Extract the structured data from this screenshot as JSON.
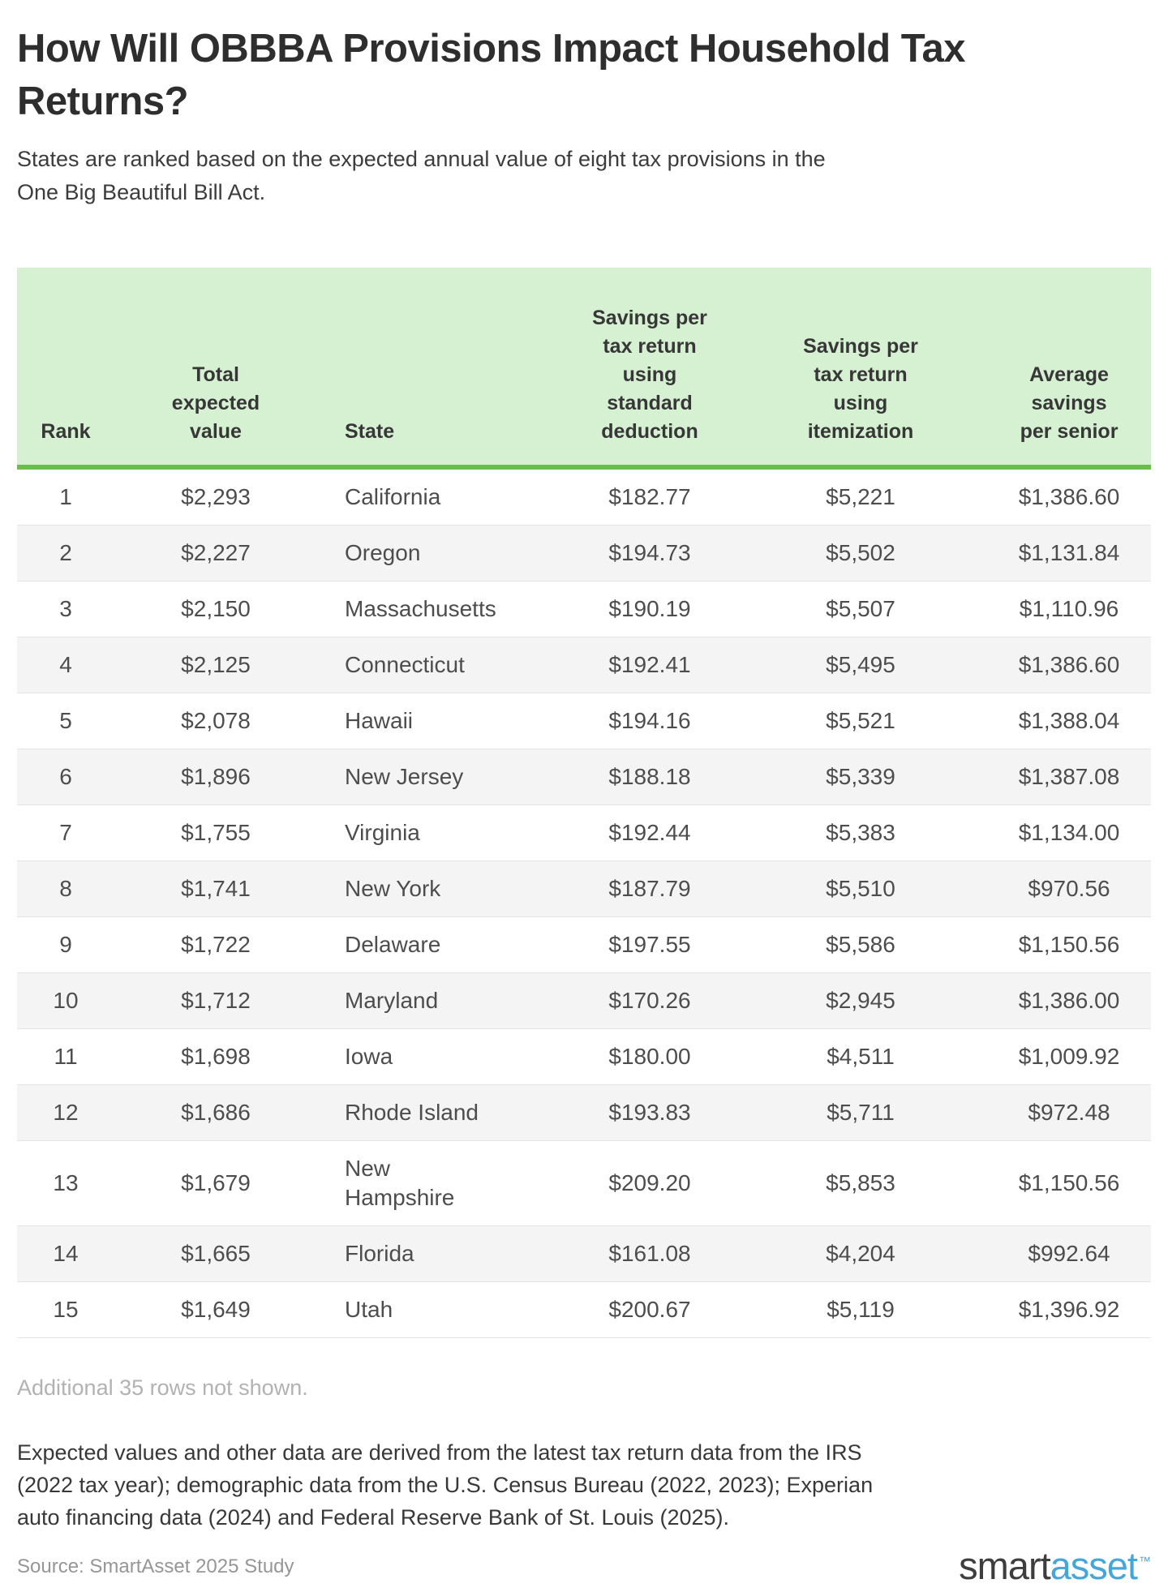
{
  "page": {
    "title_lines": [
      "How Will OBBBA Provisions Impact Household Tax",
      "Returns?"
    ],
    "subtitle_lines": [
      "States are ranked based on the expected annual value of eight tax provisions in the",
      "One Big Beautiful Bill Act."
    ]
  },
  "chart_data": {
    "type": "table",
    "title": "How Will OBBBA Provisions Impact Household Tax Returns?",
    "subtitle": "States are ranked based on the expected annual value of eight tax provisions in the One Big Beautiful Bill Act.",
    "columns": [
      {
        "id": "rank",
        "header_lines": [
          "Rank"
        ]
      },
      {
        "id": "total-expected-value",
        "header_lines": [
          "Total",
          "expected",
          "value"
        ]
      },
      {
        "id": "state",
        "header_lines": [
          "State"
        ]
      },
      {
        "id": "savings-standard-deduction",
        "header_lines": [
          "Savings per",
          "tax return",
          "using",
          "standard",
          "deduction"
        ]
      },
      {
        "id": "savings-itemization",
        "header_lines": [
          "Savings per",
          "tax return",
          "using",
          "itemization"
        ]
      },
      {
        "id": "average-savings-per-senior",
        "header_lines": [
          "Average",
          "savings",
          "per senior"
        ]
      }
    ],
    "rows": [
      [
        "1",
        "$2,293",
        "California",
        "$182.77",
        "$5,221",
        "$1,386.60"
      ],
      [
        "2",
        "$2,227",
        "Oregon",
        "$194.73",
        "$5,502",
        "$1,131.84"
      ],
      [
        "3",
        "$2,150",
        "Massachusetts",
        "$190.19",
        "$5,507",
        "$1,110.96"
      ],
      [
        "4",
        "$2,125",
        "Connecticut",
        "$192.41",
        "$5,495",
        "$1,386.60"
      ],
      [
        "5",
        "$2,078",
        "Hawaii",
        "$194.16",
        "$5,521",
        "$1,388.04"
      ],
      [
        "6",
        "$1,896",
        "New Jersey",
        "$188.18",
        "$5,339",
        "$1,387.08"
      ],
      [
        "7",
        "$1,755",
        "Virginia",
        "$192.44",
        "$5,383",
        "$1,134.00"
      ],
      [
        "8",
        "$1,741",
        "New York",
        "$187.79",
        "$5,510",
        "$970.56"
      ],
      [
        "9",
        "$1,722",
        "Delaware",
        "$197.55",
        "$5,586",
        "$1,150.56"
      ],
      [
        "10",
        "$1,712",
        "Maryland",
        "$170.26",
        "$2,945",
        "$1,386.00"
      ],
      [
        "11",
        "$1,698",
        "Iowa",
        "$180.00",
        "$4,511",
        "$1,009.92"
      ],
      [
        "12",
        "$1,686",
        "Rhode Island",
        "$193.83",
        "$5,711",
        "$972.48"
      ],
      [
        "13",
        "$1,679",
        "New\nHampshire",
        "$209.20",
        "$5,853",
        "$1,150.56"
      ],
      [
        "14",
        "$1,665",
        "Florida",
        "$161.08",
        "$4,204",
        "$992.64"
      ],
      [
        "15",
        "$1,649",
        "Utah",
        "$200.67",
        "$5,119",
        "$1,396.92"
      ]
    ],
    "layout": {
      "header_bg": "#d6f1d2",
      "header_border_green": "#6cbe48",
      "alt_row_bg": "#f4f4f4",
      "legend_position": "none",
      "grid": "row-dividers"
    }
  },
  "footer": {
    "additional_rows_note": "Additional 35 rows not shown.",
    "methodology_lines": [
      "Expected values and other data are derived from the latest tax return data from the IRS",
      "(2022 tax year); demographic data from the U.S. Census Bureau (2022, 2023); Experian",
      "auto financing data (2024) and Federal Reserve Bank of St. Louis (2025)."
    ],
    "source": "Source: SmartAsset 2025 Study",
    "logo": {
      "part1": "smart",
      "part2": "asset",
      "trademark": "™"
    }
  }
}
